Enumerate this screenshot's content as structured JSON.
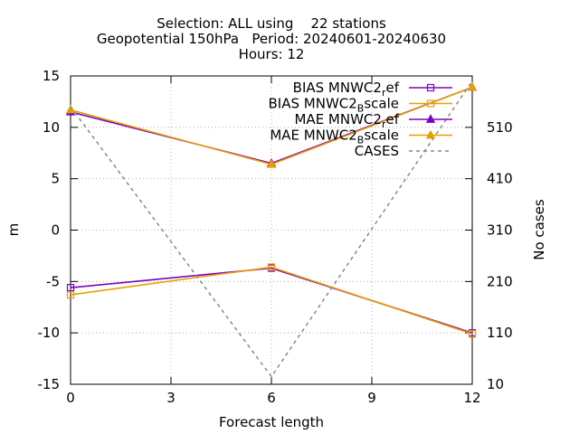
{
  "title_lines": [
    "Selection: ALL using    22 stations",
    "Geopotential 150hPa   Period: 20240601-20240630",
    "Hours: 12"
  ],
  "chart_data": {
    "type": "line",
    "x": [
      0,
      6,
      12
    ],
    "xlabel": "Forecast length",
    "ylabel": "m",
    "y2label": "No cases",
    "xlim": [
      0,
      12
    ],
    "ylim": [
      -15,
      15
    ],
    "y2lim": [
      10,
      610
    ],
    "xticks": [
      "0",
      "3",
      "6",
      "9",
      "12"
    ],
    "yticks": [
      "15",
      "10",
      "5",
      "0",
      "-5",
      "-10",
      "-15"
    ],
    "y2ticks": [
      "510",
      "410",
      "310",
      "210",
      "110",
      "10"
    ],
    "grid": true,
    "legend_position": "top-right",
    "series": [
      {
        "name": "BIAS MNWC2_ref",
        "legend_base": "BIAS MNWC2",
        "legend_sub": "r",
        "legend_rest": "ef",
        "axis": "y",
        "marker": "open-square",
        "color": "#8000c0",
        "values": [
          -5.6,
          -3.7,
          -10.0
        ]
      },
      {
        "name": "BIAS MNWC2_Bscale",
        "legend_base": "BIAS MNWC2",
        "legend_sub": "B",
        "legend_rest": "scale",
        "axis": "y",
        "marker": "open-square",
        "color": "#e69f00",
        "values": [
          -6.3,
          -3.6,
          -10.1
        ]
      },
      {
        "name": "MAE MNWC2_ref",
        "legend_base": "MAE MNWC2",
        "legend_sub": "r",
        "legend_rest": "ef",
        "axis": "y",
        "marker": "filled-triangle",
        "color": "#8000c0",
        "values": [
          11.5,
          6.5,
          13.9
        ]
      },
      {
        "name": "MAE MNWC2_Bscale",
        "legend_base": "MAE MNWC2",
        "legend_sub": "B",
        "legend_rest": "scale",
        "axis": "y",
        "marker": "filled-triangle",
        "color": "#e69f00",
        "values": [
          11.7,
          6.4,
          13.9
        ]
      },
      {
        "name": "CASES",
        "legend_base": "CASES",
        "legend_sub": "",
        "legend_rest": "",
        "axis": "y2",
        "marker": "none",
        "dashed": true,
        "color": "#888888",
        "values": [
          550,
          25,
          600
        ]
      }
    ]
  }
}
